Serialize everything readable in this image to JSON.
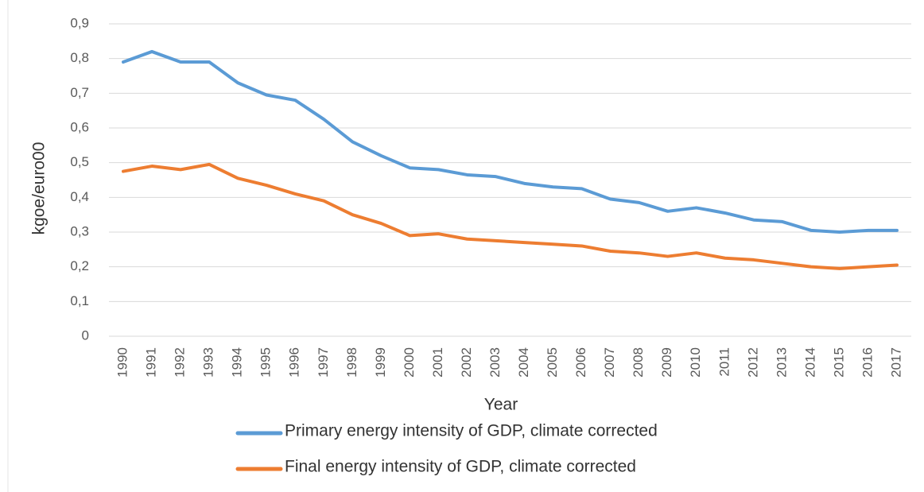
{
  "chart_data": {
    "type": "line",
    "x_label": "Year",
    "y_label": "kgoe/euro00",
    "categories": [
      "1990",
      "1991",
      "1992",
      "1993",
      "1994",
      "1995",
      "1996",
      "1997",
      "1998",
      "1999",
      "2000",
      "2001",
      "2002",
      "2003",
      "2004",
      "2005",
      "2006",
      "2007",
      "2008",
      "2009",
      "2010",
      "2011",
      "2012",
      "2013",
      "2014",
      "2015",
      "2016",
      "2017"
    ],
    "series": [
      {
        "name": "Primary energy intensity of GDP, climate corrected",
        "color": "#5b9bd5",
        "values": [
          0.79,
          0.82,
          0.79,
          0.79,
          0.73,
          0.695,
          0.68,
          0.625,
          0.56,
          0.52,
          0.485,
          0.48,
          0.465,
          0.46,
          0.44,
          0.43,
          0.425,
          0.395,
          0.385,
          0.36,
          0.37,
          0.355,
          0.335,
          0.33,
          0.305,
          0.3,
          0.305,
          0.305
        ]
      },
      {
        "name": "Final energy intensity of GDP, climate corrected",
        "color": "#ed7d31",
        "values": [
          0.475,
          0.49,
          0.48,
          0.495,
          0.455,
          0.435,
          0.41,
          0.39,
          0.35,
          0.325,
          0.29,
          0.295,
          0.28,
          0.275,
          0.27,
          0.265,
          0.26,
          0.245,
          0.24,
          0.23,
          0.24,
          0.225,
          0.22,
          0.21,
          0.2,
          0.195,
          0.2,
          0.205
        ]
      }
    ],
    "ylim": [
      0,
      0.9
    ],
    "yticks": [
      0,
      {
        "value": 0.1,
        "label": "0,1"
      },
      {
        "value": 0.2,
        "label": "0,2"
      },
      {
        "value": 0.3,
        "label": "0,3"
      },
      {
        "value": 0.4,
        "label": "0,4"
      },
      {
        "value": 0.5,
        "label": "0,5"
      },
      {
        "value": 0.6,
        "label": "0,6"
      },
      {
        "value": 0.7,
        "label": "0,7"
      },
      {
        "value": 0.8,
        "label": "0,8"
      },
      {
        "value": 0.9,
        "label": "0,9"
      }
    ],
    "grid": true
  }
}
